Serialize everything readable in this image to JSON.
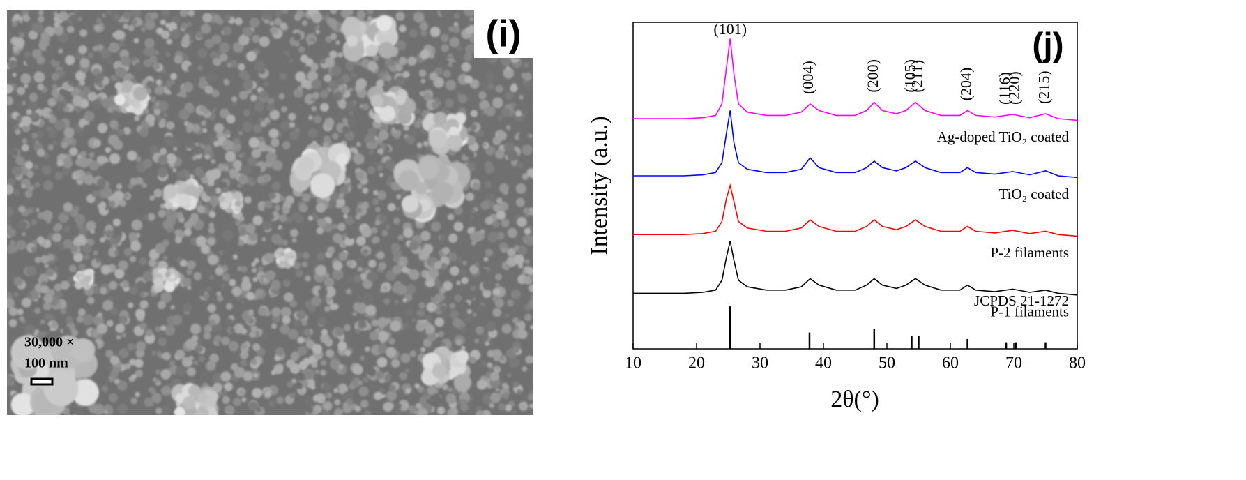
{
  "sem_image": {
    "label": "(i)",
    "magnification": "30,000 ×",
    "scale_bar": "100 nm"
  },
  "chart_data": {
    "type": "line",
    "panel_label": "(j)",
    "xlabel": "2θ(°)",
    "ylabel": "Intensity (a.u.)",
    "xlim": [
      10,
      80
    ],
    "xticks": [
      10,
      20,
      30,
      40,
      50,
      60,
      70,
      80
    ],
    "ylim": [
      0,
      100
    ],
    "x": [
      10,
      14,
      18,
      21,
      23,
      24,
      24.7,
      25.3,
      25.9,
      26.6,
      28,
      31,
      34,
      36.5,
      37.9,
      39.3,
      42,
      45,
      46.8,
      48,
      49.3,
      51.5,
      53,
      54.5,
      56,
      58.5,
      61.5,
      62.7,
      64,
      67,
      69.8,
      72.5,
      75,
      77,
      80
    ],
    "series": [
      {
        "name": "Ag-doped TiO₂ coated",
        "color": "#ff00ff",
        "values": [
          70.5,
          70.5,
          70.5,
          70.8,
          71.5,
          75,
          86,
          95,
          84,
          75,
          72.5,
          71.5,
          71.5,
          72.5,
          75,
          73,
          71.5,
          71.5,
          73,
          75.5,
          73,
          72,
          73,
          75.5,
          73,
          71.5,
          71.5,
          73,
          71.5,
          71,
          71.8,
          70.8,
          72,
          70.5,
          70
        ]
      },
      {
        "name": "TiO₂ coated",
        "color": "#0000ff",
        "values": [
          53,
          53,
          53,
          53.3,
          54,
          57,
          66,
          73,
          63,
          57,
          55,
          54,
          54,
          55,
          58.5,
          55.5,
          54,
          54,
          55.5,
          57.5,
          55.5,
          54.5,
          55.5,
          57.5,
          55.5,
          54,
          54,
          55.5,
          54,
          53.5,
          54.3,
          53.3,
          54.5,
          53,
          52.5
        ]
      },
      {
        "name": "P-2 filaments",
        "color": "#ff0000",
        "values": [
          35,
          35,
          35,
          35.3,
          36,
          39,
          46,
          50,
          45,
          39,
          37,
          36,
          36,
          37,
          39.5,
          37.5,
          36,
          36,
          37.5,
          39.5,
          37.5,
          36.5,
          37.5,
          39.5,
          37.5,
          36,
          36,
          37.5,
          36,
          35.5,
          36.3,
          35.3,
          36,
          35,
          34.5
        ]
      },
      {
        "name": "P-1 filaments",
        "color": "#000000",
        "values": [
          17,
          17,
          17,
          17.3,
          18,
          21,
          28,
          33,
          27,
          21,
          19,
          18,
          18,
          19,
          21.5,
          19.5,
          18,
          18,
          19.5,
          21.5,
          19.5,
          18.5,
          19.5,
          21.5,
          19.5,
          18,
          18,
          19.5,
          18,
          17.5,
          18.3,
          17.3,
          18,
          17,
          16.5
        ]
      }
    ],
    "reference": {
      "name": "JCPDS 21-1272",
      "color": "#000000",
      "x": [
        25.3,
        37.8,
        48,
        53.9,
        55,
        62.7,
        68.8,
        70.3,
        75
      ],
      "values": [
        13,
        5,
        6,
        4,
        4,
        3,
        2,
        2,
        2
      ]
    },
    "annotations": [
      {
        "text": "(101)",
        "x": 25.3
      },
      {
        "text": "(004)",
        "x": 37.8
      },
      {
        "text": "(200)",
        "x": 48
      },
      {
        "text": "(105)",
        "x": 53.9
      },
      {
        "text": "(211)",
        "x": 55
      },
      {
        "text": "(204)",
        "x": 62.7
      },
      {
        "text": "(116)",
        "x": 68.8
      },
      {
        "text": "(220)",
        "x": 70.3
      },
      {
        "text": "(215)",
        "x": 75
      }
    ]
  }
}
